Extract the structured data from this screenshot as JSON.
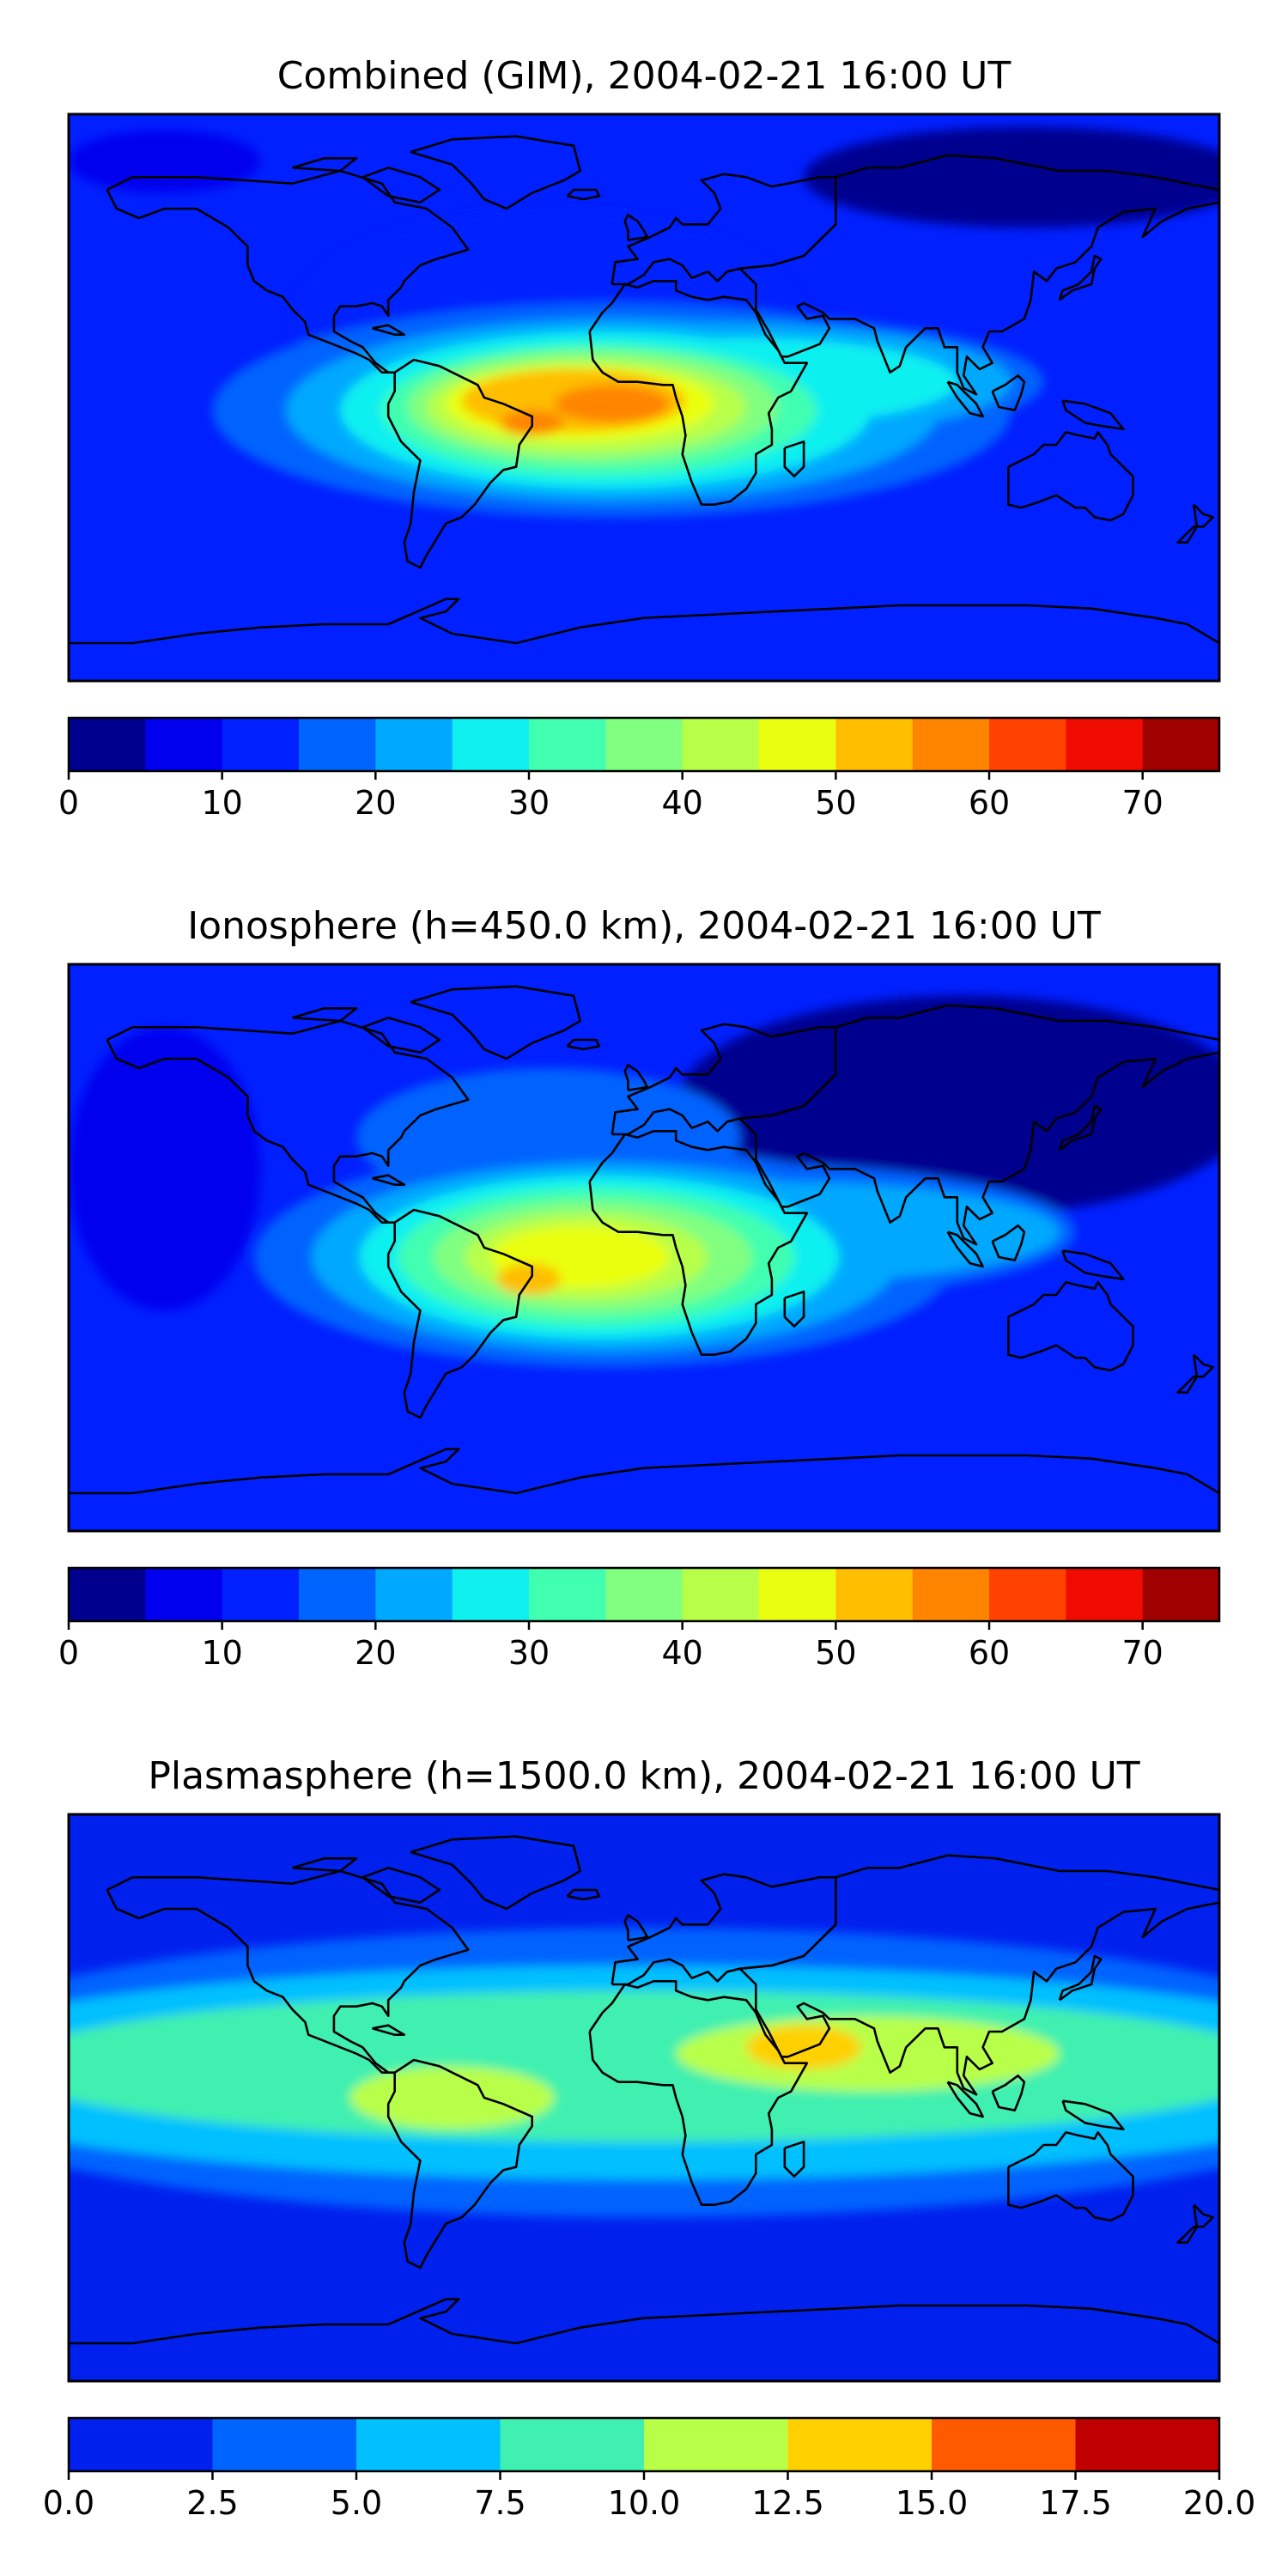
{
  "panels": [
    {
      "title": "Combined (GIM), 2004-02-21 16:00 UT",
      "colorbar": {
        "ticks": [
          "0",
          "10",
          "20",
          "30",
          "40",
          "50",
          "60",
          "70"
        ],
        "tick_values": [
          0,
          10,
          20,
          30,
          40,
          50,
          60,
          70
        ],
        "vmin": 0,
        "vmax": 75,
        "colors": [
          "#00008f",
          "#0000ee",
          "#0020ff",
          "#0064ff",
          "#00a8ff",
          "#10f0f0",
          "#40ffb0",
          "#80ff80",
          "#b8ff48",
          "#eaff10",
          "#ffbe00",
          "#ff8500",
          "#ff4200",
          "#f00b00",
          "#9f0000"
        ]
      },
      "field": {
        "background": "#0020ff",
        "blobs": [
          {
            "lon": -30,
            "lat": 25,
            "rlon": 80,
            "rlat": 35,
            "color": "#0020ff"
          },
          {
            "lon": 120,
            "lat": 70,
            "rlon": 70,
            "rlat": 16,
            "color": "#00008f"
          },
          {
            "lon": -150,
            "lat": 75,
            "rlon": 30,
            "rlat": 10,
            "color": "#0000ee"
          },
          {
            "lon": -10,
            "lat": -4,
            "rlon": 125,
            "rlat": 34,
            "color": "#0064ff"
          },
          {
            "lon": 10,
            "lat": 5,
            "rlon": 115,
            "rlat": 22,
            "color": "#0064ff"
          },
          {
            "lon": -10,
            "lat": -4,
            "rlon": 102,
            "rlat": 29,
            "color": "#00a8ff"
          },
          {
            "lon": 20,
            "lat": 5,
            "rlon": 95,
            "rlat": 19,
            "color": "#00a8ff"
          },
          {
            "lon": -12,
            "lat": -4,
            "rlon": 83,
            "rlat": 25,
            "color": "#10f0f0"
          },
          {
            "lon": 30,
            "lat": 5,
            "rlon": 68,
            "rlat": 14,
            "color": "#10f0f0"
          },
          {
            "lon": -14,
            "lat": -4,
            "rlon": 68,
            "rlat": 21,
            "color": "#40ffb0"
          },
          {
            "lon": -16,
            "lat": -3,
            "rlon": 58,
            "rlat": 18,
            "color": "#80ff80"
          },
          {
            "lon": -18,
            "lat": -3,
            "rlon": 50,
            "rlat": 15,
            "color": "#b8ff48"
          },
          {
            "lon": -20,
            "lat": -2,
            "rlon": 42,
            "rlat": 12,
            "color": "#eaff10"
          },
          {
            "lon": -22,
            "lat": -1,
            "rlon": 35,
            "rlat": 10,
            "color": "#ffbe00"
          },
          {
            "lon": -10,
            "lat": -2,
            "rlon": 18,
            "rlat": 6,
            "color": "#ff8500"
          },
          {
            "lon": -35,
            "lat": -8,
            "rlon": 10,
            "rlat": 4,
            "color": "#ff8500"
          }
        ]
      }
    },
    {
      "title": "Ionosphere  (h=450.0 km), 2004-02-21 16:00 UT",
      "colorbar": {
        "ticks": [
          "0",
          "10",
          "20",
          "30",
          "40",
          "50",
          "60",
          "70"
        ],
        "tick_values": [
          0,
          10,
          20,
          30,
          40,
          50,
          60,
          70
        ],
        "vmin": 0,
        "vmax": 75,
        "colors": [
          "#00008f",
          "#0000ee",
          "#0020ff",
          "#0064ff",
          "#00a8ff",
          "#10f0f0",
          "#40ffb0",
          "#80ff80",
          "#b8ff48",
          "#eaff10",
          "#ffbe00",
          "#ff8500",
          "#ff4200",
          "#f00b00",
          "#9f0000"
        ]
      },
      "field": {
        "background": "#0020ff",
        "blobs": [
          {
            "lon": 100,
            "lat": 45,
            "rlon": 90,
            "rlat": 35,
            "color": "#00008f"
          },
          {
            "lon": -150,
            "lat": 25,
            "rlon": 30,
            "rlat": 45,
            "color": "#0000ee"
          },
          {
            "lon": -30,
            "lat": 35,
            "rlon": 60,
            "rlat": 22,
            "color": "#0064ff"
          },
          {
            "lon": -12,
            "lat": -3,
            "rlon": 110,
            "rlat": 35,
            "color": "#0064ff"
          },
          {
            "lon": 25,
            "lat": 5,
            "rlon": 110,
            "rlat": 22,
            "color": "#0064ff"
          },
          {
            "lon": -12,
            "lat": -3,
            "rlon": 92,
            "rlat": 30,
            "color": "#00a8ff"
          },
          {
            "lon": 40,
            "lat": 5,
            "rlon": 90,
            "rlat": 16,
            "color": "#00a8ff"
          },
          {
            "lon": -14,
            "lat": -3,
            "rlon": 75,
            "rlat": 26,
            "color": "#10f0f0"
          },
          {
            "lon": -15,
            "lat": -3,
            "rlon": 62,
            "rlat": 22,
            "color": "#40ffb0"
          },
          {
            "lon": -16,
            "lat": -3,
            "rlon": 50,
            "rlat": 18,
            "color": "#80ff80"
          },
          {
            "lon": -18,
            "lat": -3,
            "rlon": 38,
            "rlat": 14,
            "color": "#b8ff48"
          },
          {
            "lon": -20,
            "lat": -3,
            "rlon": 28,
            "rlat": 10,
            "color": "#eaff10"
          },
          {
            "lon": -36,
            "lat": -10,
            "rlon": 10,
            "rlat": 5,
            "color": "#ffbe00"
          }
        ]
      }
    },
    {
      "title": "Plasmasphere (h=1500.0 km), 2004-02-21 16:00 UT",
      "colorbar": {
        "ticks": [
          "0.0",
          "2.5",
          "5.0",
          "7.5",
          "10.0",
          "12.5",
          "15.0",
          "17.5",
          "20.0"
        ],
        "tick_values": [
          0,
          2.5,
          5,
          7.5,
          10,
          12.5,
          15,
          17.5,
          20
        ],
        "vmin": 0,
        "vmax": 20,
        "colors": [
          "#0020ee",
          "#0064ff",
          "#00c0ff",
          "#40f0b0",
          "#b8ff48",
          "#ffd000",
          "#ff5a00",
          "#c00000"
        ]
      },
      "field": {
        "background": "#0020ee",
        "blobs": [
          {
            "lon": 0,
            "lat": 8,
            "rlon": 240,
            "rlat": 46,
            "color": "#0064ff"
          },
          {
            "lon": 0,
            "lat": 8,
            "rlon": 240,
            "rlat": 34,
            "color": "#00c0ff"
          },
          {
            "lon": 0,
            "lat": 10,
            "rlon": 200,
            "rlat": 24,
            "color": "#40f0b0"
          },
          {
            "lon": 70,
            "lat": 14,
            "rlon": 60,
            "rlat": 12,
            "color": "#b8ff48"
          },
          {
            "lon": -60,
            "lat": 0,
            "rlon": 32,
            "rlat": 10,
            "color": "#b8ff48"
          },
          {
            "lon": 50,
            "lat": 16,
            "rlon": 18,
            "rlat": 7,
            "color": "#ffd000"
          }
        ]
      }
    }
  ],
  "coastline_color": "#000000"
}
